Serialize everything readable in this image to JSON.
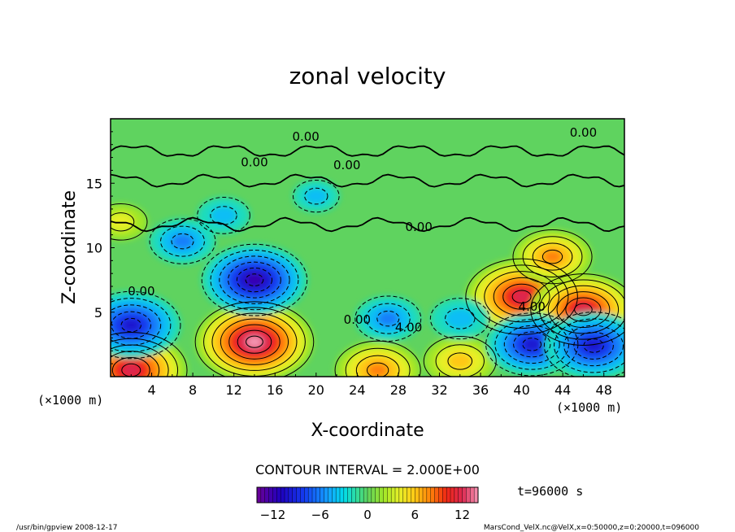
{
  "chart_data": {
    "type": "heatmap",
    "title": "zonal velocity",
    "xlabel": "X-coordinate",
    "ylabel": "Z-coordinate",
    "x_unit_label": "(×1000 m)",
    "y_unit_label": "(×1000 m)",
    "xlim": [
      0,
      50
    ],
    "ylim": [
      0,
      20
    ],
    "x_ticks": [
      "4",
      "8",
      "12",
      "16",
      "20",
      "24",
      "28",
      "32",
      "36",
      "40",
      "44",
      "48"
    ],
    "y_ticks": [
      "5",
      "10",
      "15"
    ],
    "contour_interval_label": "CONTOUR INTERVAL = 2.000E+00",
    "time_label": "t=96000 s",
    "colorbar": {
      "range": [
        -14,
        14
      ],
      "ticks": [
        "−12",
        "−6",
        "0",
        "6",
        "12"
      ]
    },
    "contour_labels": [
      "0.00",
      "0.00",
      "0.00",
      "0.00",
      "0.00",
      "0.00",
      "0.00",
      "4.00",
      "4.00"
    ],
    "features": [
      {
        "x": 14,
        "z": 2.7,
        "value": 13
      },
      {
        "x": 40,
        "z": 6.2,
        "value": 12
      },
      {
        "x": 46,
        "z": 5.2,
        "value": 11
      },
      {
        "x": 2,
        "z": 0.5,
        "value": 12
      },
      {
        "x": 26,
        "z": 0.5,
        "value": 8
      },
      {
        "x": 34,
        "z": 1.2,
        "value": 6
      },
      {
        "x": 43,
        "z": 9.3,
        "value": 7
      },
      {
        "x": 14,
        "z": 7.5,
        "value": -11
      },
      {
        "x": 2,
        "z": 4.0,
        "value": -10
      },
      {
        "x": 41,
        "z": 2.5,
        "value": -9
      },
      {
        "x": 47,
        "z": 2.4,
        "value": -10
      },
      {
        "x": 27,
        "z": 4.5,
        "value": -5
      },
      {
        "x": 34,
        "z": 4.5,
        "value": -4
      },
      {
        "x": 7,
        "z": 10.5,
        "value": -5
      },
      {
        "x": 11,
        "z": 12.5,
        "value": -3
      },
      {
        "x": 20,
        "z": 14.0,
        "value": -2
      },
      {
        "x": 1,
        "z": 12.0,
        "value": 3
      }
    ]
  },
  "footer": {
    "left": "/usr/bin/gpview   2008-12-17",
    "right": "MarsCond_VelX.nc@VelX,x=0:50000,z=0:20000,t=096000"
  }
}
